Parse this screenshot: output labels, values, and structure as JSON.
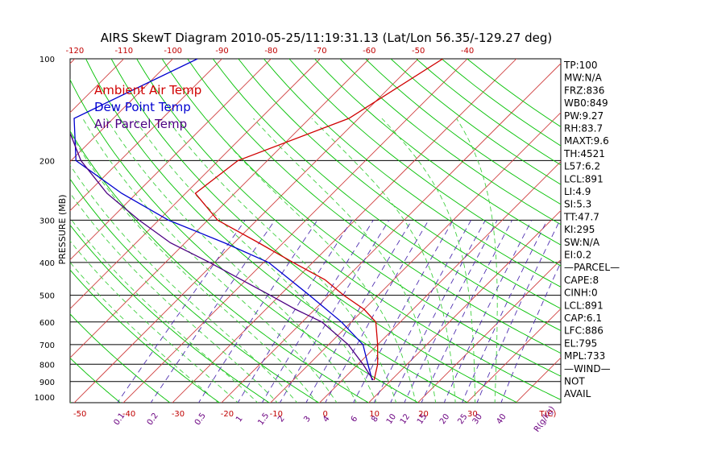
{
  "title": "AIRS SkewT Diagram 2010-05-25/11:19:31.13 (Lat/Lon 56.35/-129.27 deg)",
  "colors": {
    "temperature": "#d00000",
    "dewpoint": "#0000d0",
    "parcel": "#4b0082",
    "isotherm": "#d04040",
    "dry_adiabat": "#00c000",
    "moist_adiabat": "#40d040",
    "mixing_ratio": "#5030b0",
    "isobar": "#000000"
  },
  "chart_data": {
    "type": "line",
    "title": "AIRS SkewT Diagram 2010-05-25/11:19:31.13 (Lat/Lon 56.35/-129.27 deg)",
    "ylabel": "PRESSURE (MB)",
    "xlabel": "T(C)",
    "y_scale": "log",
    "ylim": [
      1050,
      100
    ],
    "xlim_bottom": [
      -52,
      48
    ],
    "pressure_ticks": [
      100,
      200,
      300,
      400,
      500,
      600,
      700,
      800,
      900,
      1000
    ],
    "isobar_lines": [
      200,
      300,
      400,
      500,
      600,
      700,
      800,
      900
    ],
    "top_temp_ticks": [
      -120,
      -110,
      -100,
      -90,
      -80,
      -70,
      -60,
      -50,
      -40
    ],
    "bottom_temp_ticks": [
      -50,
      -40,
      -30,
      -20,
      -10,
      0,
      10,
      20,
      30
    ],
    "mixing_ratio_labels": [
      "0.1",
      "0.2",
      "0.5",
      "1",
      "1.5",
      "2",
      "3",
      "4",
      "6",
      "8",
      "10",
      "12",
      "15",
      "20",
      "25",
      "30",
      "40",
      "R(g/kg)"
    ],
    "mixing_ratio_values": [
      0.1,
      0.2,
      0.5,
      1,
      1.5,
      2,
      3,
      4,
      6,
      8,
      10,
      12,
      15,
      20,
      25,
      30,
      40
    ],
    "isotherm_range": [
      -160,
      40
    ],
    "dry_adiabat_thetas_k": [
      220,
      230,
      240,
      250,
      260,
      270,
      280,
      290,
      300,
      310,
      320,
      330,
      340,
      350,
      360,
      370,
      380,
      390,
      400,
      410,
      420,
      430,
      440,
      450
    ],
    "moist_adiabat_start_c": [
      -20,
      -16,
      -12,
      -8,
      -4,
      0,
      4,
      8,
      12,
      16,
      20,
      24,
      28,
      32,
      36
    ],
    "legend": [
      {
        "label": "Ambient Air Temp",
        "color": "#d00000"
      },
      {
        "label": "Dew Point Temp",
        "color": "#0000d0"
      },
      {
        "label": "Air Parcel Temp",
        "color": "#4b0082"
      }
    ],
    "series": [
      {
        "name": "Ambient Air Temp",
        "color": "#d00000",
        "points": [
          {
            "p": 100,
            "t": -45
          },
          {
            "p": 150,
            "t": -52
          },
          {
            "p": 200,
            "t": -66
          },
          {
            "p": 250,
            "t": -68
          },
          {
            "p": 300,
            "t": -58
          },
          {
            "p": 350,
            "t": -45
          },
          {
            "p": 400,
            "t": -34
          },
          {
            "p": 450,
            "t": -24
          },
          {
            "p": 500,
            "t": -17
          },
          {
            "p": 550,
            "t": -10
          },
          {
            "p": 600,
            "t": -5
          },
          {
            "p": 700,
            "t": 0
          },
          {
            "p": 800,
            "t": 4
          },
          {
            "p": 891,
            "t": 6.5
          }
        ]
      },
      {
        "name": "Dew Point Temp",
        "color": "#0000d0",
        "points": [
          {
            "p": 100,
            "t": -95
          },
          {
            "p": 150,
            "t": -108
          },
          {
            "p": 200,
            "t": -99
          },
          {
            "p": 250,
            "t": -83
          },
          {
            "p": 300,
            "t": -68
          },
          {
            "p": 350,
            "t": -52
          },
          {
            "p": 400,
            "t": -39
          },
          {
            "p": 500,
            "t": -24
          },
          {
            "p": 600,
            "t": -12
          },
          {
            "p": 700,
            "t": -3
          },
          {
            "p": 800,
            "t": 2
          },
          {
            "p": 891,
            "t": 6.1
          }
        ]
      },
      {
        "name": "Air Parcel Temp",
        "color": "#4b0082",
        "points": [
          {
            "p": 100,
            "t": -122
          },
          {
            "p": 150,
            "t": -110
          },
          {
            "p": 200,
            "t": -98
          },
          {
            "p": 250,
            "t": -86
          },
          {
            "p": 300,
            "t": -74
          },
          {
            "p": 350,
            "t": -63
          },
          {
            "p": 400,
            "t": -51
          },
          {
            "p": 450,
            "t": -41
          },
          {
            "p": 500,
            "t": -32
          },
          {
            "p": 550,
            "t": -24
          },
          {
            "p": 600,
            "t": -16
          },
          {
            "p": 700,
            "t": -6
          },
          {
            "p": 800,
            "t": 1
          },
          {
            "p": 891,
            "t": 6.3
          }
        ]
      }
    ]
  },
  "stats": [
    "TP:100",
    "MW:N/A",
    "FRZ:836",
    "WB0:849",
    "PW:9.27",
    "RH:83.7",
    "MAXT:9.6",
    "TH:4521",
    "L57:6.2",
    "LCL:891",
    "LI:4.9",
    "SI:5.3",
    "TT:47.7",
    "KI:295",
    "SW:N/A",
    "EI:0.2",
    "—PARCEL—",
    "CAPE:8",
    "CINH:0",
    "LCL:891",
    "CAP:6.1",
    "LFC:886",
    "EL:795",
    "MPL:733",
    "—WIND—",
    "NOT",
    "AVAIL"
  ]
}
